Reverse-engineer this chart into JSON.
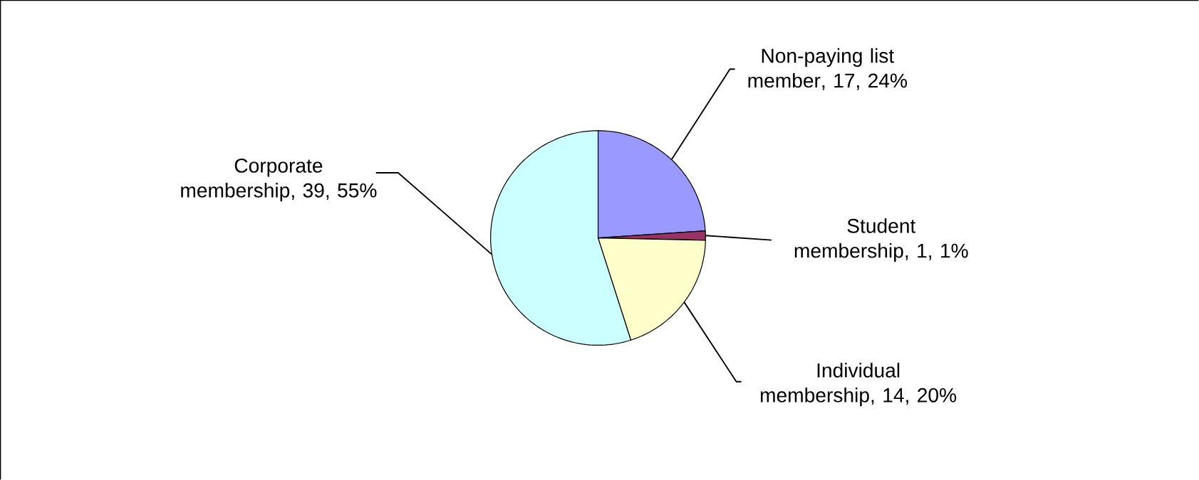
{
  "chart_data": {
    "type": "pie",
    "categories": [
      "Non-paying list member",
      "Student membership",
      "Individual membership",
      "Corporate membership"
    ],
    "values": [
      17,
      1,
      14,
      39
    ],
    "value_labels": [
      ", 17, 24%",
      ", 1, 1%",
      ", 14, 20%",
      ", 39, 55%"
    ],
    "colors": [
      "#9999ff",
      "#993366",
      "#ffffcc",
      "#ccffff"
    ],
    "legend": false
  }
}
